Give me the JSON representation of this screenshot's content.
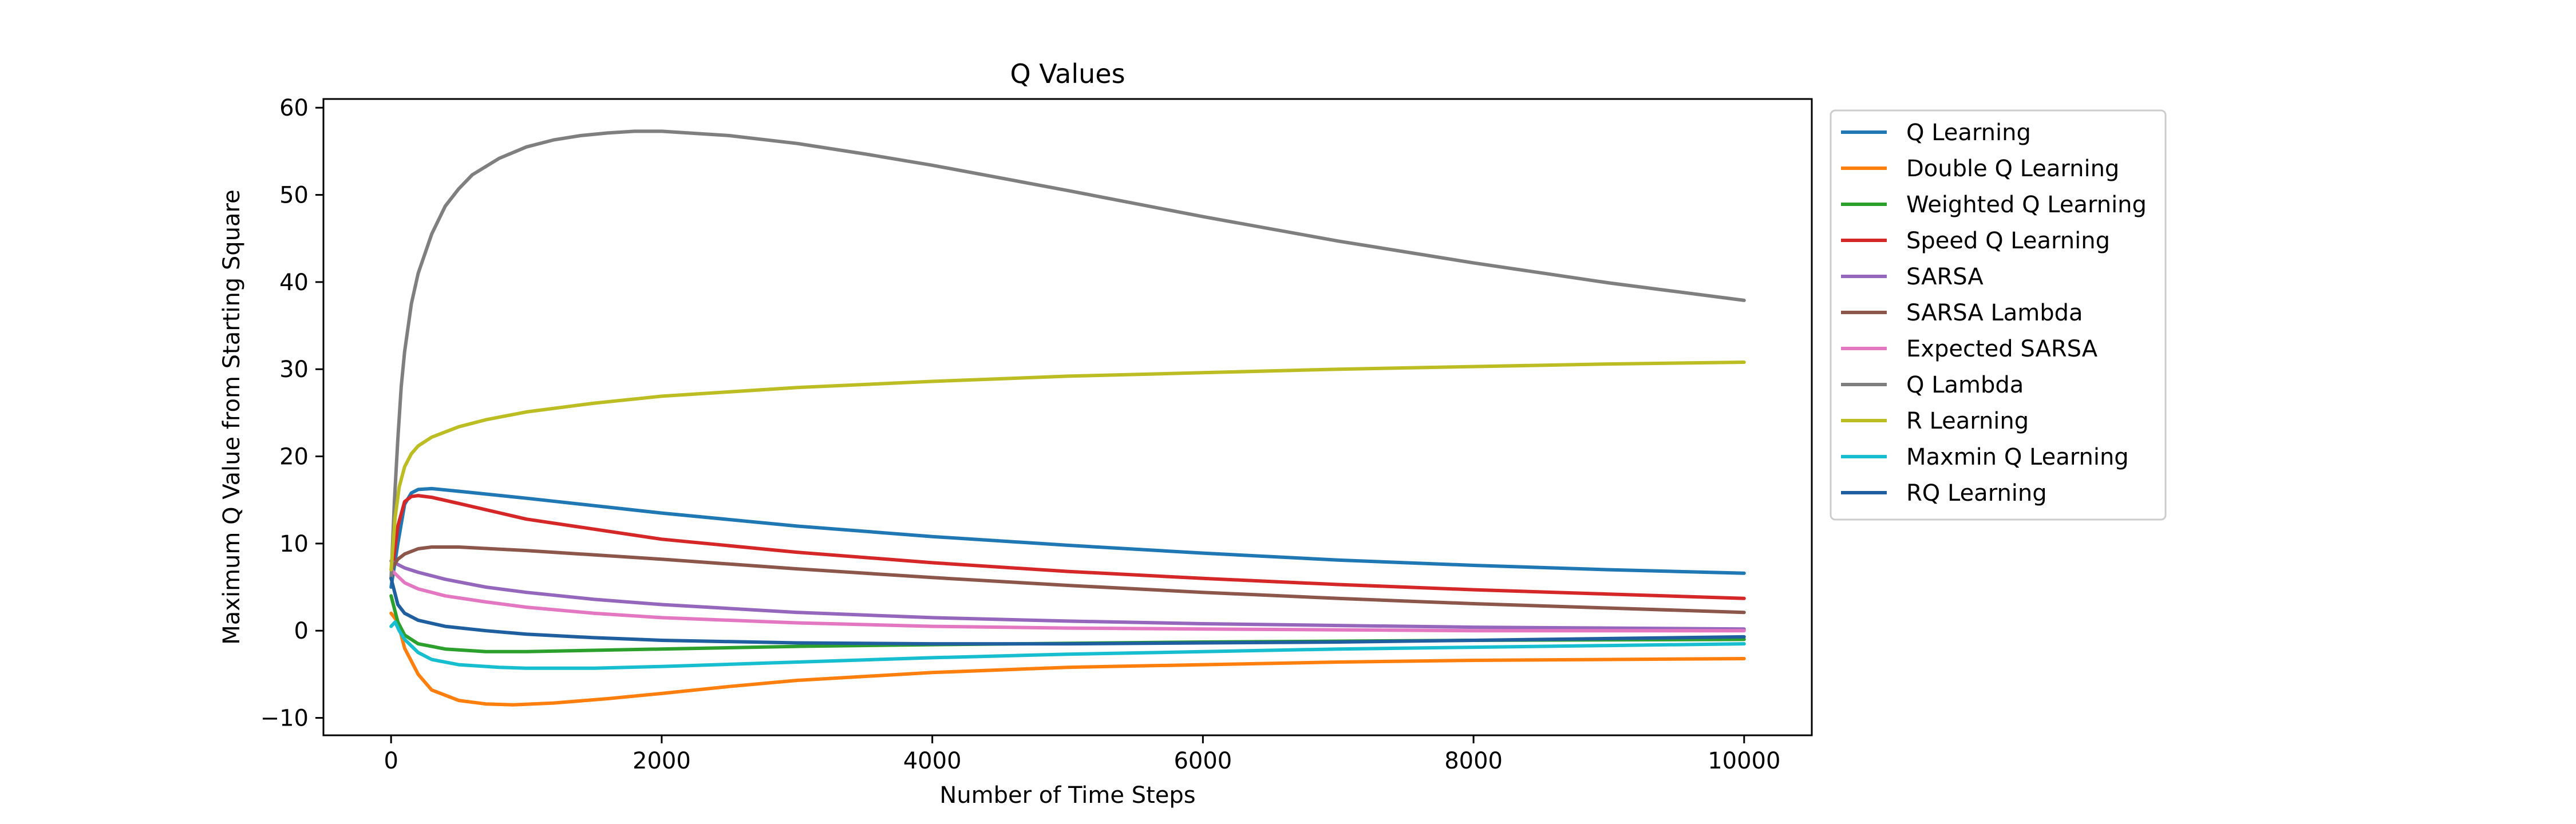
{
  "chart_data": {
    "type": "line",
    "title": "Q Values",
    "xlabel": "Number of Time Steps",
    "ylabel": "Maximum Q Value from Starting Square",
    "xlim": [
      -500,
      10500
    ],
    "ylim": [
      -12,
      61
    ],
    "xticks": [
      0,
      2000,
      4000,
      6000,
      8000,
      10000
    ],
    "yticks": [
      -10,
      0,
      10,
      20,
      30,
      40,
      50,
      60
    ],
    "xtick_labels": [
      "0",
      "2000",
      "4000",
      "6000",
      "8000",
      "10000"
    ],
    "ytick_labels": [
      "−10",
      "0",
      "10",
      "20",
      "30",
      "40",
      "50",
      "60"
    ],
    "legend_position": "outside-right-top",
    "grid": false,
    "series": [
      {
        "name": "Q Learning",
        "color": "#1f77b4",
        "points": [
          [
            0,
            5
          ],
          [
            50,
            10
          ],
          [
            100,
            14.5
          ],
          [
            150,
            15.8
          ],
          [
            200,
            16.2
          ],
          [
            300,
            16.3
          ],
          [
            500,
            16
          ],
          [
            1000,
            15.2
          ],
          [
            2000,
            13.5
          ],
          [
            3000,
            12
          ],
          [
            4000,
            10.8
          ],
          [
            5000,
            9.8
          ],
          [
            6000,
            8.9
          ],
          [
            7000,
            8.1
          ],
          [
            8000,
            7.5
          ],
          [
            9000,
            7
          ],
          [
            10000,
            6.6
          ]
        ]
      },
      {
        "name": "Double Q Learning",
        "color": "#ff7f0e",
        "points": [
          [
            0,
            2
          ],
          [
            50,
            1
          ],
          [
            100,
            -2
          ],
          [
            200,
            -5
          ],
          [
            300,
            -6.8
          ],
          [
            500,
            -8
          ],
          [
            700,
            -8.4
          ],
          [
            900,
            -8.5
          ],
          [
            1200,
            -8.3
          ],
          [
            1600,
            -7.8
          ],
          [
            2000,
            -7.2
          ],
          [
            2500,
            -6.4
          ],
          [
            3000,
            -5.7
          ],
          [
            4000,
            -4.8
          ],
          [
            5000,
            -4.2
          ],
          [
            6000,
            -3.9
          ],
          [
            7000,
            -3.6
          ],
          [
            8000,
            -3.4
          ],
          [
            9000,
            -3.3
          ],
          [
            10000,
            -3.2
          ]
        ]
      },
      {
        "name": "Weighted Q Learning",
        "color": "#2ca02c",
        "points": [
          [
            0,
            4
          ],
          [
            50,
            1
          ],
          [
            100,
            -0.5
          ],
          [
            200,
            -1.5
          ],
          [
            400,
            -2.1
          ],
          [
            700,
            -2.4
          ],
          [
            1000,
            -2.4
          ],
          [
            2000,
            -2.1
          ],
          [
            3000,
            -1.8
          ],
          [
            4000,
            -1.6
          ],
          [
            6000,
            -1.3
          ],
          [
            8000,
            -1.1
          ],
          [
            10000,
            -1
          ]
        ]
      },
      {
        "name": "Speed Q Learning",
        "color": "#d62728",
        "points": [
          [
            0,
            6
          ],
          [
            50,
            12
          ],
          [
            100,
            14.8
          ],
          [
            150,
            15.4
          ],
          [
            200,
            15.5
          ],
          [
            300,
            15.3
          ],
          [
            500,
            14.6
          ],
          [
            1000,
            12.8
          ],
          [
            2000,
            10.5
          ],
          [
            3000,
            9
          ],
          [
            4000,
            7.8
          ],
          [
            5000,
            6.8
          ],
          [
            6000,
            6
          ],
          [
            7000,
            5.3
          ],
          [
            8000,
            4.7
          ],
          [
            9000,
            4.2
          ],
          [
            10000,
            3.7
          ]
        ]
      },
      {
        "name": "SARSA",
        "color": "#9467bd",
        "points": [
          [
            0,
            8
          ],
          [
            100,
            7.2
          ],
          [
            200,
            6.7
          ],
          [
            400,
            5.9
          ],
          [
            700,
            5
          ],
          [
            1000,
            4.4
          ],
          [
            1500,
            3.6
          ],
          [
            2000,
            3
          ],
          [
            3000,
            2.1
          ],
          [
            4000,
            1.5
          ],
          [
            5000,
            1.1
          ],
          [
            6000,
            0.8
          ],
          [
            7000,
            0.6
          ],
          [
            8000,
            0.4
          ],
          [
            9000,
            0.3
          ],
          [
            10000,
            0.2
          ]
        ]
      },
      {
        "name": "SARSA Lambda",
        "color": "#8c564b",
        "points": [
          [
            0,
            7
          ],
          [
            50,
            8.2
          ],
          [
            100,
            8.8
          ],
          [
            200,
            9.4
          ],
          [
            300,
            9.6
          ],
          [
            500,
            9.6
          ],
          [
            1000,
            9.2
          ],
          [
            2000,
            8.2
          ],
          [
            3000,
            7.1
          ],
          [
            4000,
            6.1
          ],
          [
            5000,
            5.2
          ],
          [
            6000,
            4.4
          ],
          [
            7000,
            3.7
          ],
          [
            8000,
            3.1
          ],
          [
            9000,
            2.6
          ],
          [
            10000,
            2.1
          ]
        ]
      },
      {
        "name": "Expected SARSA",
        "color": "#e377c2",
        "points": [
          [
            0,
            7
          ],
          [
            100,
            5.5
          ],
          [
            200,
            4.8
          ],
          [
            400,
            4
          ],
          [
            700,
            3.3
          ],
          [
            1000,
            2.7
          ],
          [
            1500,
            2
          ],
          [
            2000,
            1.5
          ],
          [
            3000,
            0.9
          ],
          [
            4000,
            0.5
          ],
          [
            5000,
            0.3
          ],
          [
            6000,
            0.2
          ],
          [
            7000,
            0.1
          ],
          [
            8000,
            0
          ],
          [
            9000,
            0
          ],
          [
            10000,
            0
          ]
        ]
      },
      {
        "name": "Q Lambda",
        "color": "#7f7f7f",
        "points": [
          [
            0,
            6
          ],
          [
            25,
            15
          ],
          [
            50,
            22
          ],
          [
            75,
            28
          ],
          [
            100,
            32
          ],
          [
            150,
            37.5
          ],
          [
            200,
            41
          ],
          [
            300,
            45.5
          ],
          [
            400,
            48.7
          ],
          [
            500,
            50.7
          ],
          [
            600,
            52.3
          ],
          [
            800,
            54.2
          ],
          [
            1000,
            55.5
          ],
          [
            1200,
            56.3
          ],
          [
            1400,
            56.8
          ],
          [
            1600,
            57.1
          ],
          [
            1800,
            57.3
          ],
          [
            2000,
            57.3
          ],
          [
            2500,
            56.8
          ],
          [
            3000,
            55.9
          ],
          [
            3500,
            54.7
          ],
          [
            4000,
            53.4
          ],
          [
            5000,
            50.5
          ],
          [
            6000,
            47.5
          ],
          [
            7000,
            44.7
          ],
          [
            8000,
            42.2
          ],
          [
            9000,
            39.9
          ],
          [
            10000,
            37.9
          ]
        ]
      },
      {
        "name": "R Learning",
        "color": "#bcbd22",
        "points": [
          [
            0,
            7
          ],
          [
            30,
            13
          ],
          [
            60,
            16.5
          ],
          [
            100,
            18.8
          ],
          [
            150,
            20.3
          ],
          [
            200,
            21.2
          ],
          [
            300,
            22.2
          ],
          [
            500,
            23.4
          ],
          [
            700,
            24.2
          ],
          [
            1000,
            25.1
          ],
          [
            1500,
            26.1
          ],
          [
            2000,
            26.9
          ],
          [
            3000,
            27.9
          ],
          [
            4000,
            28.6
          ],
          [
            5000,
            29.2
          ],
          [
            6000,
            29.6
          ],
          [
            7000,
            30
          ],
          [
            8000,
            30.3
          ],
          [
            9000,
            30.6
          ],
          [
            10000,
            30.8
          ]
        ]
      },
      {
        "name": "Maxmin Q Learning",
        "color": "#17becf",
        "points": [
          [
            0,
            0.5
          ],
          [
            30,
            1
          ],
          [
            60,
            0
          ],
          [
            100,
            -1
          ],
          [
            200,
            -2.5
          ],
          [
            300,
            -3.3
          ],
          [
            500,
            -3.9
          ],
          [
            800,
            -4.2
          ],
          [
            1000,
            -4.3
          ],
          [
            1500,
            -4.3
          ],
          [
            2000,
            -4.1
          ],
          [
            3000,
            -3.6
          ],
          [
            4000,
            -3.1
          ],
          [
            5000,
            -2.7
          ],
          [
            6000,
            -2.4
          ],
          [
            7000,
            -2.1
          ],
          [
            8000,
            -1.9
          ],
          [
            9000,
            -1.7
          ],
          [
            10000,
            -1.5
          ]
        ]
      },
      {
        "name": "RQ Learning",
        "color": "#1f5f9f",
        "points": [
          [
            0,
            6
          ],
          [
            50,
            3
          ],
          [
            100,
            2
          ],
          [
            200,
            1.2
          ],
          [
            400,
            0.5
          ],
          [
            700,
            0
          ],
          [
            1000,
            -0.4
          ],
          [
            1500,
            -0.8
          ],
          [
            2000,
            -1.1
          ],
          [
            3000,
            -1.4
          ],
          [
            4000,
            -1.5
          ],
          [
            5000,
            -1.5
          ],
          [
            6000,
            -1.4
          ],
          [
            7000,
            -1.3
          ],
          [
            8000,
            -1.1
          ],
          [
            9000,
            -0.9
          ],
          [
            10000,
            -0.7
          ]
        ]
      }
    ]
  }
}
